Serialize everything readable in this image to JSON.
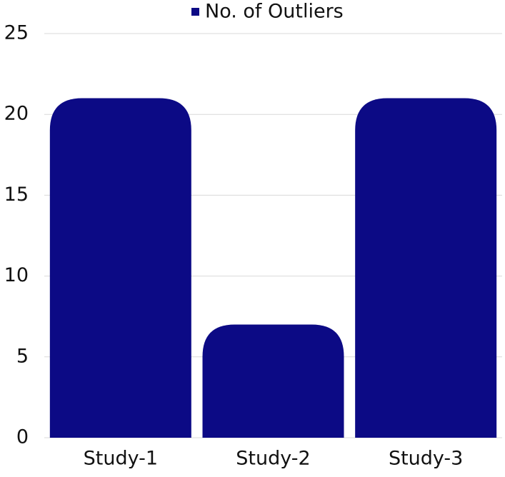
{
  "chart_data": {
    "type": "bar",
    "categories": [
      "Study-1",
      "Study-2",
      "Study-3"
    ],
    "series": [
      {
        "name": "No. of Outliers",
        "color": "#0c0a85",
        "values": [
          21,
          7,
          21
        ]
      }
    ],
    "ylim": [
      0,
      25
    ],
    "yticks": [
      0,
      5,
      10,
      15,
      20,
      25
    ],
    "grid": true,
    "legend": "top"
  }
}
